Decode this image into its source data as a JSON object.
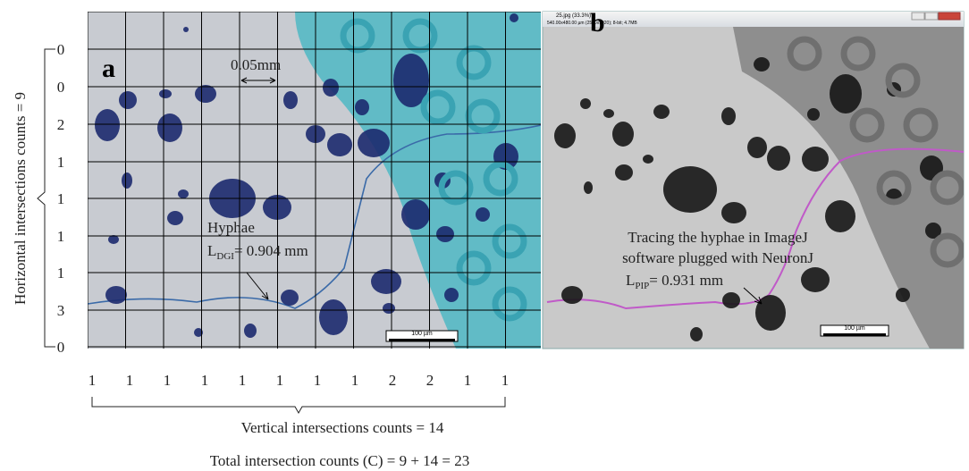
{
  "y_axis_label": "Horizontal intersections counts = 9",
  "row_counts": [
    "0",
    "0",
    "2",
    "1",
    "1",
    "1",
    "1",
    "3",
    "0"
  ],
  "column_counts": [
    "1",
    "1",
    "1",
    "1",
    "1",
    "1",
    "1",
    "1",
    "2",
    "2",
    "1",
    "1"
  ],
  "vertical_summary": "Vertical intersections counts = 14",
  "total_summary": "Total intersection counts (C) = 9 + 14 = 23",
  "panel_a": {
    "label": "a",
    "grid_size": "0.05mm",
    "hyphae": "Hyphae",
    "length": {
      "symbol": "L",
      "subscript": "DGI",
      "value": "= 0.904 mm"
    },
    "scale_bar": "100 µm"
  },
  "panel_b": {
    "label": "b",
    "window_title": "25.jpg (33.3%)",
    "window_info": "540.00x480.00 µm (2560x1920); 8-bit; 4.7MB",
    "caption": [
      "Tracing the hyphae in ImageJ",
      "software plugged with NeuronJ"
    ],
    "length": {
      "symbol": "L",
      "subscript": "PIP",
      "value": "= 0.931 mm"
    },
    "scale_bar": "100 µm"
  }
}
